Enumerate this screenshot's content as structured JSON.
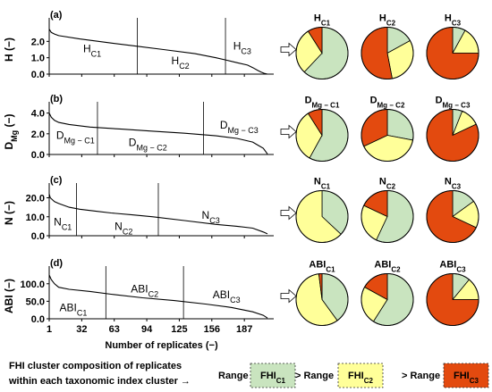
{
  "colors": {
    "green": "#c9e4bf",
    "yellow": "#ffff99",
    "orange": "#e34a0f",
    "line": "#000000"
  },
  "legend": {
    "caption_line1": "FHI cluster composition of replicates",
    "caption_line2": "within each taxonomic index cluster →",
    "range1": "Range",
    "range2": "> Range",
    "range3": "> Range",
    "items": [
      {
        "base": "FHI",
        "sub": "C1",
        "color": "green"
      },
      {
        "base": "FHI",
        "sub": "C2",
        "color": "yellow"
      },
      {
        "base": "FHI",
        "sub": "C3",
        "color": "orange"
      }
    ]
  },
  "chart_data": {
    "type": "line",
    "xlabel": "Number of replicates (−)",
    "xticks": [
      1,
      32,
      63,
      94,
      125,
      156,
      187
    ],
    "xlim": [
      1,
      215
    ],
    "panels": [
      {
        "tag": "(a)",
        "ylabel_base": "H",
        "ylabel_sub": "",
        "ylabel_unit": " (−)",
        "ylim": [
          0,
          3.0
        ],
        "yticks": [
          "0.0",
          "1.0",
          "2.0"
        ],
        "ytick_values": [
          0,
          1,
          2
        ],
        "x": [
          1,
          3,
          6,
          10,
          30,
          60,
          85,
          110,
          140,
          160,
          170,
          180,
          190,
          195,
          200,
          203,
          206,
          209
        ],
        "y": [
          2.75,
          2.55,
          2.45,
          2.35,
          2.15,
          1.9,
          1.7,
          1.5,
          1.25,
          1.0,
          0.85,
          0.7,
          0.55,
          0.4,
          0.22,
          0.12,
          0.05,
          0.0
        ],
        "boundaries": [
          85,
          169
        ],
        "clusters": [
          {
            "base": "H",
            "sub": "C1",
            "x": 42,
            "y": 1.35
          },
          {
            "base": "H",
            "sub": "C2",
            "x": 126,
            "y": 0.6
          },
          {
            "base": "H",
            "sub": "C3",
            "x": 185,
            "y": 1.5
          }
        ],
        "pies": [
          {
            "title_base": "H",
            "title_sub": "C1",
            "shares": {
              "green": 0.62,
              "yellow": 0.29,
              "orange": 0.09
            }
          },
          {
            "title_base": "H",
            "title_sub": "C2",
            "shares": {
              "green": 0.17,
              "yellow": 0.3,
              "orange": 0.53
            }
          },
          {
            "title_base": "H",
            "title_sub": "C3",
            "shares": {
              "green": 0.08,
              "yellow": 0.17,
              "orange": 0.75
            }
          }
        ]
      },
      {
        "tag": "(b)",
        "ylabel_base": "D",
        "ylabel_sub": "Mg",
        "ylabel_unit": " (−)",
        "ylim": [
          0,
          4.4
        ],
        "yticks": [
          "0.0",
          "2.0",
          "4.0"
        ],
        "ytick_values": [
          0,
          2,
          4
        ],
        "x": [
          1,
          3,
          6,
          10,
          20,
          40,
          70,
          100,
          130,
          160,
          180,
          195,
          200,
          205,
          209
        ],
        "y": [
          4.0,
          3.6,
          3.3,
          3.1,
          2.9,
          2.65,
          2.45,
          2.25,
          2.05,
          1.8,
          1.55,
          1.2,
          0.9,
          0.6,
          0.05
        ],
        "boundaries": [
          47,
          148
        ],
        "clusters": [
          {
            "base": "D",
            "sub": "Mg − C1",
            "x": 26,
            "y": 1.5
          },
          {
            "base": "D",
            "sub": "Mg − C2",
            "x": 95,
            "y": 0.8
          },
          {
            "base": "D",
            "sub": "Mg − C3",
            "x": 182,
            "y": 2.5
          }
        ],
        "pies": [
          {
            "title_base": "D",
            "title_sub": "Mg − C1",
            "shares": {
              "green": 0.58,
              "yellow": 0.33,
              "orange": 0.09
            }
          },
          {
            "title_base": "D",
            "title_sub": "Mg − C2",
            "shares": {
              "green": 0.28,
              "yellow": 0.4,
              "orange": 0.32
            }
          },
          {
            "title_base": "D",
            "title_sub": "Mg − C3",
            "shares": {
              "green": 0.06,
              "yellow": 0.12,
              "orange": 0.82
            }
          }
        ]
      },
      {
        "tag": "(c)",
        "ylabel_base": "N",
        "ylabel_sub": "",
        "ylabel_unit": " (−)",
        "ylim": [
          0,
          24
        ],
        "yticks": [
          "0.0",
          "10.0",
          "20.0"
        ],
        "ytick_values": [
          0,
          10,
          20
        ],
        "x": [
          1,
          2,
          4,
          6,
          10,
          20,
          30,
          45,
          60,
          80,
          100,
          130,
          160,
          180,
          195,
          205,
          209
        ],
        "y": [
          22,
          20,
          19,
          18,
          17,
          15,
          14,
          13,
          12,
          11,
          10,
          8,
          6,
          5,
          4,
          2,
          1
        ],
        "boundaries": [
          27,
          105
        ],
        "clusters": [
          {
            "base": "N",
            "sub": "C1",
            "x": 14,
            "y": 5.5
          },
          {
            "base": "N",
            "sub": "C2",
            "x": 72,
            "y": 3.0
          },
          {
            "base": "N",
            "sub": "C3",
            "x": 155,
            "y": 9.0
          }
        ],
        "pies": [
          {
            "title_base": "N",
            "title_sub": "C1",
            "shares": {
              "green": 0.37,
              "yellow": 0.63,
              "orange": 0.0
            }
          },
          {
            "title_base": "N",
            "title_sub": "C2",
            "shares": {
              "green": 0.57,
              "yellow": 0.25,
              "orange": 0.18
            }
          },
          {
            "title_base": "N",
            "title_sub": "C3",
            "shares": {
              "green": 0.15,
              "yellow": 0.17,
              "orange": 0.68
            }
          }
        ]
      },
      {
        "tag": "(d)",
        "ylabel_base": "ABI",
        "ylabel_sub": "",
        "ylabel_unit": " (−)",
        "ylim": [
          0,
          130
        ],
        "yticks": [
          "0.0",
          "50.0",
          "100.0"
        ],
        "ytick_values": [
          0,
          50,
          100
        ],
        "x": [
          1,
          3,
          6,
          10,
          20,
          40,
          60,
          90,
          120,
          150,
          175,
          195,
          205,
          209
        ],
        "y": [
          125,
          112,
          100,
          90,
          84,
          78,
          70,
          60,
          52,
          42,
          32,
          20,
          10,
          2
        ],
        "boundaries": [
          55,
          129
        ],
        "clusters": [
          {
            "base": "ABI",
            "sub": "C1",
            "x": 24,
            "y": 22
          },
          {
            "base": "ABI",
            "sub": "C2",
            "x": 92,
            "y": 75
          },
          {
            "base": "ABI",
            "sub": "C3",
            "x": 170,
            "y": 58
          }
        ],
        "pies": [
          {
            "title_base": "ABI",
            "title_sub": "C1",
            "shares": {
              "green": 0.4,
              "yellow": 0.58,
              "orange": 0.02
            }
          },
          {
            "title_base": "ABI",
            "title_sub": "C2",
            "shares": {
              "green": 0.59,
              "yellow": 0.24,
              "orange": 0.17
            }
          },
          {
            "title_base": "ABI",
            "title_sub": "C3",
            "shares": {
              "green": 0.11,
              "yellow": 0.14,
              "orange": 0.75
            }
          }
        ]
      }
    ]
  }
}
